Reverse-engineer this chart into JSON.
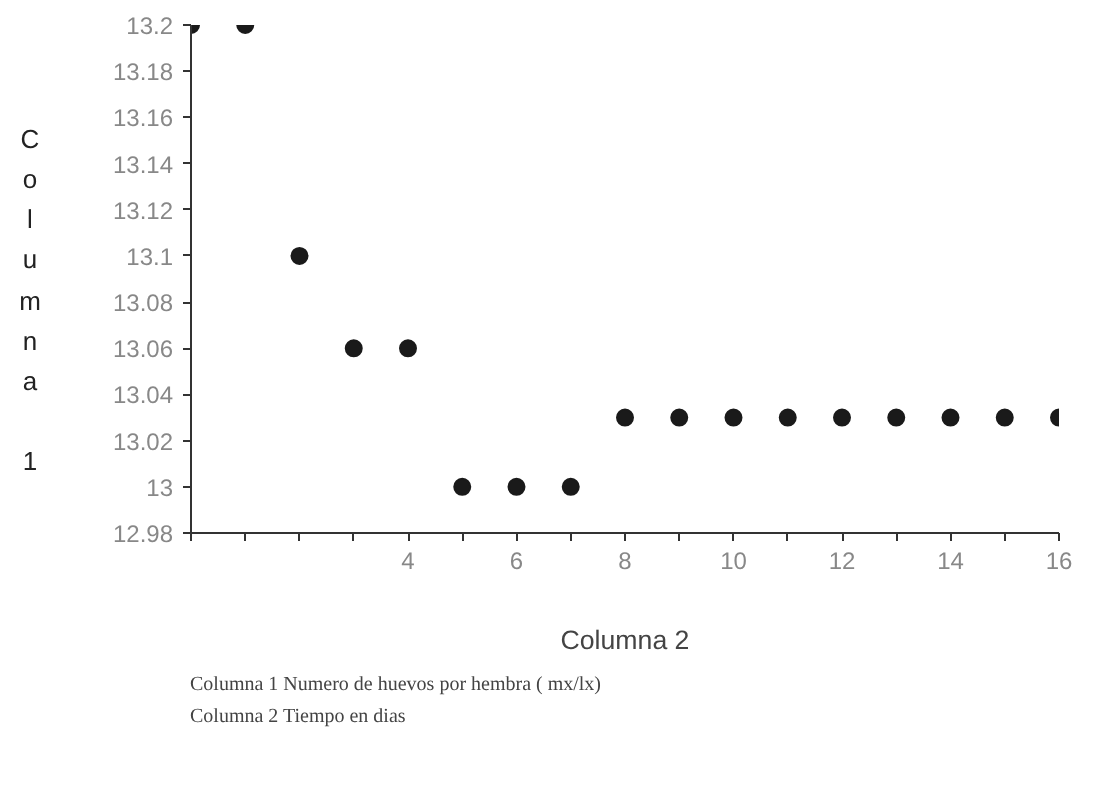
{
  "chart_data": {
    "type": "scatter",
    "xlabel": "Columna 2",
    "ylabel": "Columna 1",
    "x": [
      0,
      1,
      2,
      3,
      4,
      5,
      6,
      7,
      8,
      9,
      10,
      11,
      12,
      13,
      14,
      15,
      16
    ],
    "values": [
      13.2,
      13.2,
      13.1,
      13.06,
      13.06,
      13,
      13,
      13,
      13.03,
      13.03,
      13.03,
      13.03,
      13.03,
      13.03,
      13.03,
      13.03,
      13.03
    ],
    "color": "#1a1a1a",
    "marker": "circle",
    "grid": false,
    "xlim": [
      0,
      16
    ],
    "xticks": [
      {
        "value": 0,
        "label": null
      },
      {
        "value": 1,
        "label": null
      },
      {
        "value": 2,
        "label": null
      },
      {
        "value": 3,
        "label": null
      },
      4,
      {
        "value": 5,
        "label": null
      },
      6,
      {
        "value": 7,
        "label": null
      },
      8,
      {
        "value": 9,
        "label": null
      },
      10,
      {
        "value": 11,
        "label": null
      },
      12,
      {
        "value": 13,
        "label": null
      },
      14,
      {
        "value": 15,
        "label": null
      },
      16
    ],
    "ylim": [
      12.98,
      13.2
    ],
    "yticks": [
      12.98,
      13,
      13.02,
      13.04,
      13.06,
      13.08,
      13.1,
      13.12,
      13.14,
      13.16,
      13.18,
      13.2
    ],
    "annotations": [
      "Columna 1  Numero de huevos por hembra ( mx/lx)",
      "Columna 2  Tiempo en dias"
    ]
  }
}
